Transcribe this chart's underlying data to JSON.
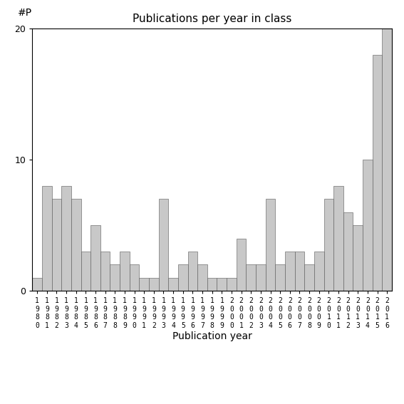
{
  "title": "Publications per year in class",
  "xlabel": "Publication year",
  "ylabel": "#P",
  "bar_color": "#c8c8c8",
  "bar_edge_color": "#555555",
  "background_color": "#ffffff",
  "ylim": [
    0,
    20
  ],
  "yticks": [
    0,
    10,
    20
  ],
  "years": [
    1980,
    1981,
    1982,
    1983,
    1984,
    1985,
    1986,
    1987,
    1988,
    1989,
    1990,
    1991,
    1992,
    1993,
    1994,
    1995,
    1996,
    1997,
    1998,
    1999,
    2000,
    2001,
    2002,
    2003,
    2004,
    2005,
    2006,
    2007,
    2008,
    2009,
    2010,
    2011,
    2012,
    2013,
    2014,
    2015,
    2016
  ],
  "values": [
    1,
    8,
    7,
    8,
    7,
    3,
    5,
    3,
    2,
    3,
    2,
    1,
    1,
    7,
    1,
    2,
    3,
    2,
    1,
    1,
    1,
    4,
    2,
    2,
    7,
    2,
    3,
    3,
    2,
    3,
    7,
    8,
    6,
    5,
    10,
    18,
    20
  ]
}
